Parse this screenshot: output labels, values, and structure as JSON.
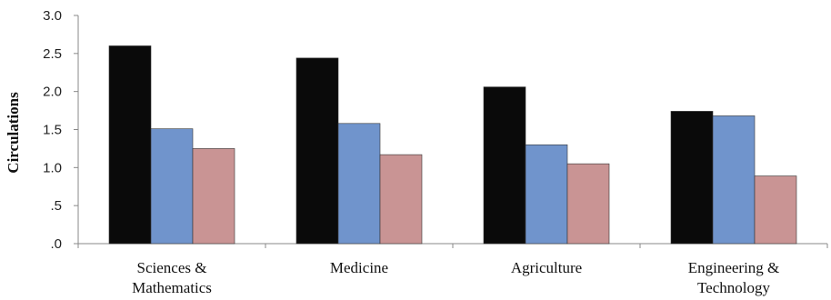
{
  "chart_data": {
    "type": "bar",
    "title": "",
    "xlabel": "",
    "ylabel": "Circulations",
    "ylim": [
      0,
      3.0
    ],
    "yticks": [
      0,
      0.5,
      1.0,
      1.5,
      2.0,
      2.5,
      3.0
    ],
    "ytick_labels": [
      ".0",
      ".5",
      "1.0",
      "1.5",
      "2.0",
      "2.5",
      "3.0"
    ],
    "categories": [
      [
        "Sciences &",
        "Mathematics"
      ],
      [
        "Medicine"
      ],
      [
        "Agriculture"
      ],
      [
        "Engineering &",
        "Technology"
      ]
    ],
    "series": [
      {
        "values": [
          2.6,
          2.44,
          2.06,
          1.74
        ],
        "color": "#0a0a0a"
      },
      {
        "values": [
          1.51,
          1.58,
          1.3,
          1.68
        ],
        "color": "#7094cc"
      },
      {
        "values": [
          1.25,
          1.17,
          1.05,
          0.89
        ],
        "color": "#c99494"
      }
    ],
    "grid": false,
    "legend": "none"
  }
}
